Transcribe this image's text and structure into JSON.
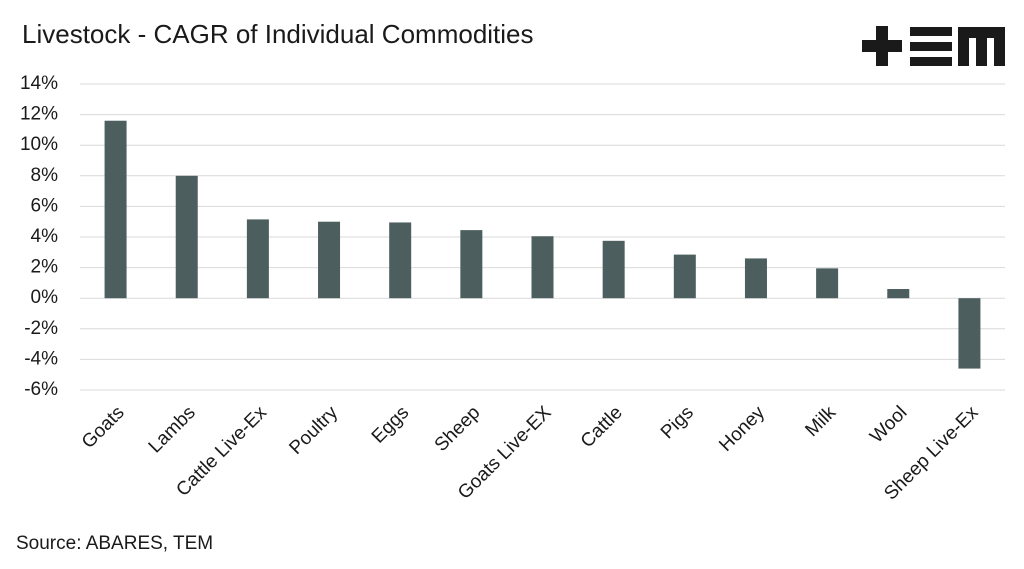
{
  "chart_data": {
    "type": "bar",
    "title": "Livestock - CAGR of Individual Commodities",
    "categories": [
      "Goats",
      "Lambs",
      "Cattle Live-Ex",
      "Poultry",
      "Eggs",
      "Sheep",
      "Goats Live-EX",
      "Cattle",
      "Pigs",
      "Honey",
      "Milk",
      "Wool",
      "Sheep Live-Ex"
    ],
    "values": [
      11.6,
      8.0,
      5.15,
      5.0,
      4.95,
      4.45,
      4.05,
      3.75,
      2.85,
      2.6,
      1.95,
      0.6,
      -4.6
    ],
    "color": "#4d5e5f",
    "ylim": [
      -6,
      14
    ],
    "yticks": [
      {
        "value": -6,
        "label": "-6%"
      },
      {
        "value": -4,
        "label": "-4%"
      },
      {
        "value": -2,
        "label": "-2%"
      },
      {
        "value": 0,
        "label": "0%"
      },
      {
        "value": 2,
        "label": "2%"
      },
      {
        "value": 4,
        "label": "4%"
      },
      {
        "value": 6,
        "label": "6%"
      },
      {
        "value": 8,
        "label": "8%"
      },
      {
        "value": 10,
        "label": "10%"
      },
      {
        "value": 12,
        "label": "12%"
      },
      {
        "value": 14,
        "label": "14%"
      }
    ],
    "grid": true,
    "source": "Source: ABARES, TEM"
  }
}
